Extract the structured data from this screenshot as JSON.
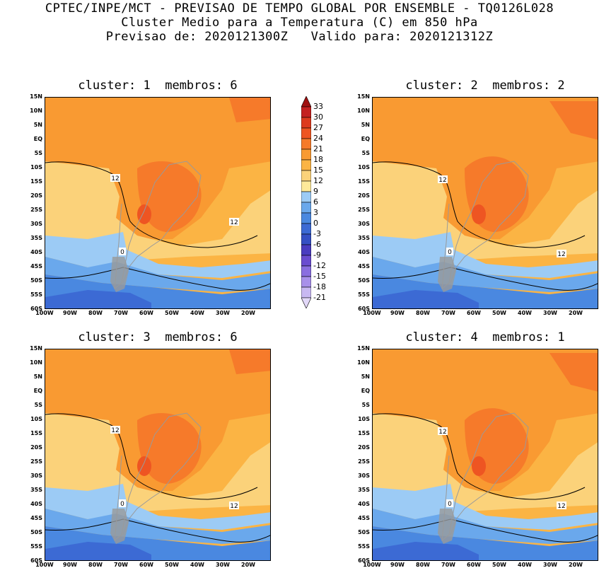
{
  "header": {
    "line1": "CPTEC/INPE/MCT - PREVISAO DE TEMPO GLOBAL POR ENSEMBLE - TQ0126L028",
    "line2": "Cluster Medio para a Temperatura (C) em 850 hPa",
    "line3": "Previsao de: 2020121300Z   Valido para: 2020121312Z"
  },
  "panels": [
    {
      "title": "cluster: 1  membros: 6"
    },
    {
      "title": "cluster: 2  membros: 2"
    },
    {
      "title": "cluster: 3  membros: 6"
    },
    {
      "title": "cluster: 4  membros: 1"
    }
  ],
  "lat_labels": [
    "15N",
    "10N",
    "5N",
    "EQ",
    "5S",
    "10S",
    "15S",
    "20S",
    "25S",
    "30S",
    "35S",
    "40S",
    "45S",
    "50S",
    "55S",
    "60S"
  ],
  "lon_labels": [
    "100W",
    "90W",
    "80W",
    "70W",
    "60W",
    "50W",
    "40W",
    "30W",
    "20W"
  ],
  "contour_labels": [
    "12",
    "12",
    "0"
  ],
  "colorbar": {
    "labels": [
      "33",
      "30",
      "27",
      "24",
      "21",
      "18",
      "15",
      "12",
      "9",
      "6",
      "3",
      "0",
      "-3",
      "-6",
      "-9",
      "-12",
      "-15",
      "-18",
      "-21"
    ],
    "colors": [
      "#a01010",
      "#c42020",
      "#dd3a1e",
      "#ee5522",
      "#f67a2a",
      "#f99a32",
      "#fbb444",
      "#fbd27a",
      "#fde99a",
      "#9ccbf5",
      "#6aa8ec",
      "#4a88e0",
      "#3c6ad4",
      "#3550c4",
      "#4a3cc0",
      "#6a4cd0",
      "#8a6ee0",
      "#a890ea",
      "#c8b8f2",
      "#e2d8f8"
    ]
  }
}
